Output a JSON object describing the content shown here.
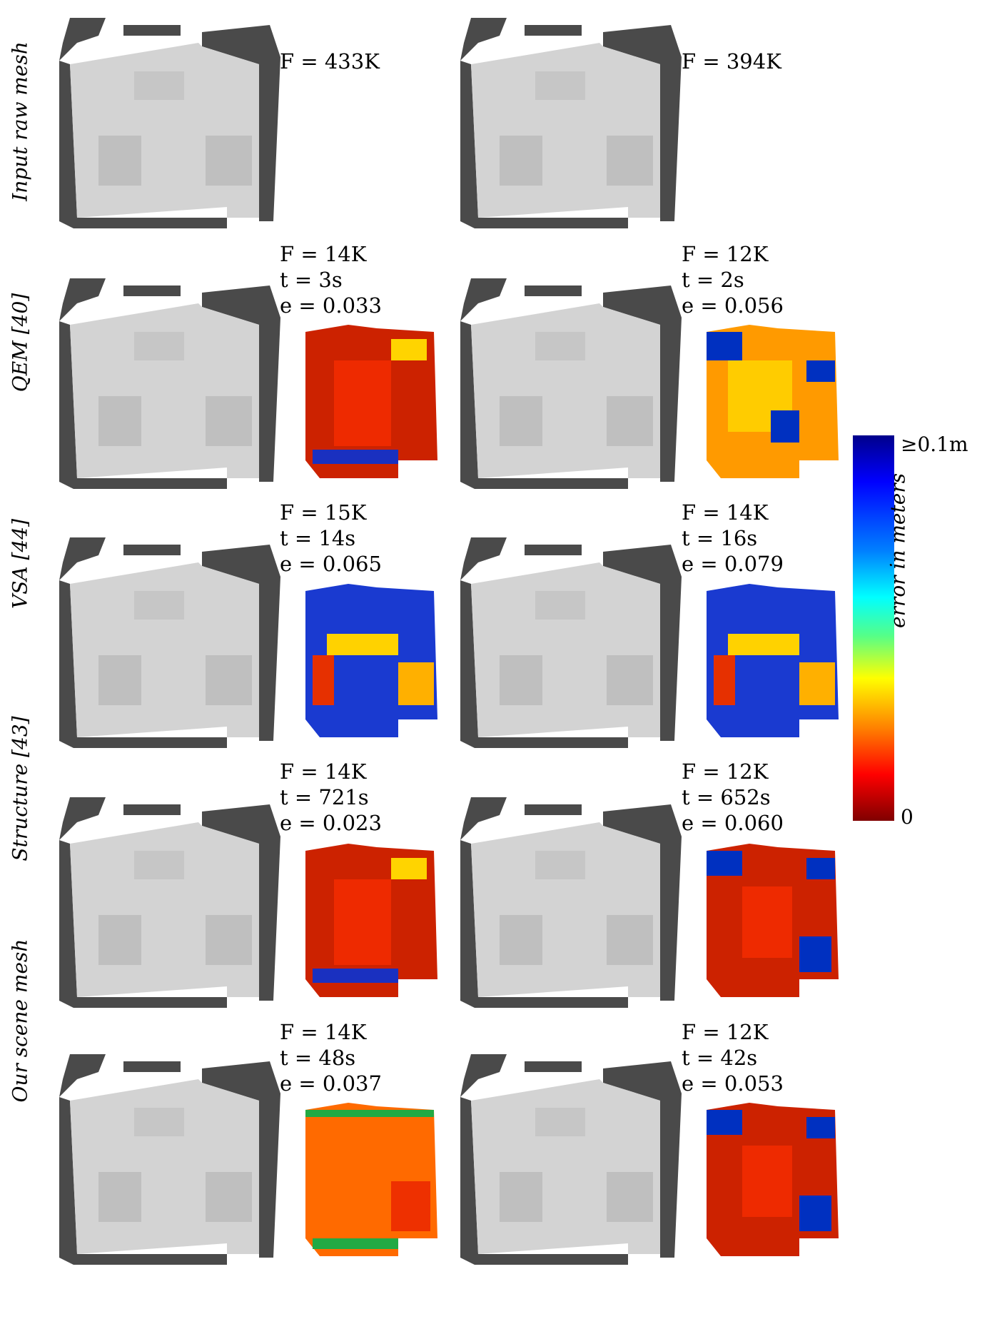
{
  "rows": [
    {
      "label": "Input raw mesh",
      "left": {
        "F": "F = 433K",
        "t": "",
        "e": ""
      },
      "right": {
        "F": "F = 394K",
        "t": "",
        "e": ""
      }
    },
    {
      "label": "QEM [40]",
      "left": {
        "F": "F = 14K",
        "t": "t = 3s",
        "e": "e = 0.033"
      },
      "right": {
        "F": "F = 12K",
        "t": "t = 2s",
        "e": "e = 0.056"
      }
    },
    {
      "label": "VSA [44]",
      "left": {
        "F": "F = 15K",
        "t": "t = 14s",
        "e": "e = 0.065"
      },
      "right": {
        "F": "F = 14K",
        "t": "t = 16s",
        "e": "e = 0.079"
      }
    },
    {
      "label": "Structure [43]",
      "left": {
        "F": "F = 14K",
        "t": "t = 721s",
        "e": "e = 0.023"
      },
      "right": {
        "F": "F = 12K",
        "t": "t = 652s",
        "e": "e = 0.060"
      }
    },
    {
      "label": "Our scene mesh",
      "left": {
        "F": "F = 14K",
        "t": "t = 48s",
        "e": "e = 0.037"
      },
      "right": {
        "F": "F = 12K",
        "t": "t = 42s",
        "e": "e = 0.053"
      }
    }
  ],
  "colorbar": {
    "top_label": "≥0.1m",
    "bottom_label": "0",
    "axis_label": "error in meters"
  },
  "colors": {
    "wall": "#4a4a4a",
    "floor": "#d3d3d3"
  }
}
